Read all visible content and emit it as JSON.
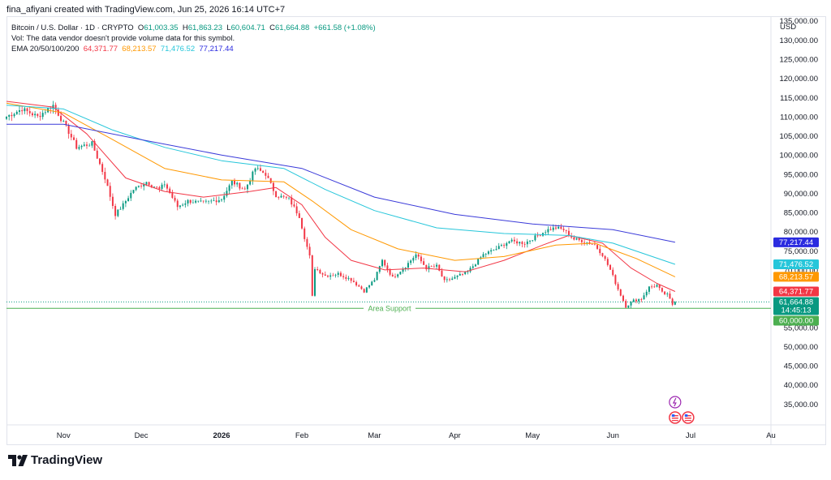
{
  "header": {
    "author_line": "fina_afiyani created with TradingView.com, Jun 25, 2026 16:14 UTC+7"
  },
  "legend": {
    "symbol": "Bitcoin / U.S. Dollar · 1D · CRYPTO",
    "o_label": "O",
    "o_value": "61,003.35",
    "h_label": "H",
    "h_value": "61,863.23",
    "l_label": "L",
    "l_value": "60,604.71",
    "c_label": "C",
    "c_value": "61,664.88",
    "change": "+661.58 (+1.08%)",
    "vol_text": "Vol: The data vendor doesn't provide volume data for this symbol.",
    "ema_label": "EMA 20/50/100/200",
    "ema20": "64,371.77",
    "ema50": "68,213.57",
    "ema100": "71,476.52",
    "ema200": "77,217.44"
  },
  "footer": {
    "brand": "TradingView"
  },
  "chart_data": {
    "type": "line",
    "currency_label": "USD",
    "ylim": [
      30000,
      136000
    ],
    "y_ticks": [
      35000,
      40000,
      45000,
      50000,
      55000,
      60000,
      65000,
      70000,
      75000,
      80000,
      85000,
      90000,
      95000,
      100000,
      105000,
      110000,
      115000,
      120000,
      125000,
      130000,
      135000
    ],
    "y_tick_labels": [
      "35,000.00",
      "40,000.00",
      "45,000.00",
      "50,000.00",
      "55,000.00",
      "60,000.00",
      "65,000.00",
      "70,000.00",
      "75,000.00",
      "80,000.00",
      "85,000.00",
      "90,000.00",
      "95,000.00",
      "100,000.00",
      "105,000.00",
      "110,000.00",
      "115,000.00",
      "120,000.00",
      "125,000.00",
      "130,000.00",
      "135,000.00"
    ],
    "x_ticks": [
      {
        "label": "Nov",
        "date": "2025-11-01",
        "bold": false
      },
      {
        "label": "Dec",
        "date": "2025-12-01",
        "bold": false
      },
      {
        "label": "2026",
        "date": "2026-01-01",
        "bold": true
      },
      {
        "label": "Feb",
        "date": "2026-02-01",
        "bold": false
      },
      {
        "label": "Mar",
        "date": "2026-03-01",
        "bold": false
      },
      {
        "label": "Apr",
        "date": "2026-04-01",
        "bold": false
      },
      {
        "label": "May",
        "date": "2026-05-01",
        "bold": false
      },
      {
        "label": "Jun",
        "date": "2026-06-01",
        "bold": false
      },
      {
        "label": "Jul",
        "date": "2026-07-01",
        "bold": false
      },
      {
        "label": "Au",
        "date": "2026-08-01",
        "bold": false
      }
    ],
    "x_range": [
      "2025-10-10",
      "2026-08-01"
    ],
    "price_anchors": [
      {
        "date": "2025-10-10",
        "close": 110000
      },
      {
        "date": "2025-10-16",
        "close": 112000
      },
      {
        "date": "2025-10-22",
        "close": 110000
      },
      {
        "date": "2025-10-28",
        "close": 113000
      },
      {
        "date": "2025-11-03",
        "close": 106000
      },
      {
        "date": "2025-11-06",
        "close": 102000
      },
      {
        "date": "2025-11-12",
        "close": 103000
      },
      {
        "date": "2025-11-17",
        "close": 94000
      },
      {
        "date": "2025-11-21",
        "close": 84500
      },
      {
        "date": "2025-11-24",
        "close": 87000
      },
      {
        "date": "2025-11-28",
        "close": 91000
      },
      {
        "date": "2025-12-03",
        "close": 93000
      },
      {
        "date": "2025-12-08",
        "close": 91000
      },
      {
        "date": "2025-12-10",
        "close": 92500
      },
      {
        "date": "2025-12-15",
        "close": 86500
      },
      {
        "date": "2025-12-19",
        "close": 88000
      },
      {
        "date": "2025-12-25",
        "close": 87500
      },
      {
        "date": "2026-01-01",
        "close": 88500
      },
      {
        "date": "2026-01-05",
        "close": 93000
      },
      {
        "date": "2026-01-10",
        "close": 91000
      },
      {
        "date": "2026-01-14",
        "close": 96500
      },
      {
        "date": "2026-01-18",
        "close": 95000
      },
      {
        "date": "2026-01-22",
        "close": 89500
      },
      {
        "date": "2026-01-27",
        "close": 88500
      },
      {
        "date": "2026-01-31",
        "close": 84000
      },
      {
        "date": "2026-02-02",
        "close": 78500
      },
      {
        "date": "2026-02-04",
        "close": 73500
      },
      {
        "date": "2026-02-05",
        "close": 63000
      },
      {
        "date": "2026-02-06",
        "close": 70500
      },
      {
        "date": "2026-02-10",
        "close": 68500
      },
      {
        "date": "2026-02-15",
        "close": 69000
      },
      {
        "date": "2026-02-20",
        "close": 67500
      },
      {
        "date": "2026-02-25",
        "close": 64500
      },
      {
        "date": "2026-03-01",
        "close": 67500
      },
      {
        "date": "2026-03-04",
        "close": 72500
      },
      {
        "date": "2026-03-08",
        "close": 68000
      },
      {
        "date": "2026-03-13",
        "close": 71000
      },
      {
        "date": "2026-03-17",
        "close": 74000
      },
      {
        "date": "2026-03-21",
        "close": 70500
      },
      {
        "date": "2026-03-25",
        "close": 71000
      },
      {
        "date": "2026-03-28",
        "close": 67000
      },
      {
        "date": "2026-04-01",
        "close": 68000
      },
      {
        "date": "2026-04-06",
        "close": 69500
      },
      {
        "date": "2026-04-12",
        "close": 74000
      },
      {
        "date": "2026-04-17",
        "close": 75500
      },
      {
        "date": "2026-04-22",
        "close": 77500
      },
      {
        "date": "2026-04-28",
        "close": 77000
      },
      {
        "date": "2026-05-03",
        "close": 79000
      },
      {
        "date": "2026-05-07",
        "close": 80500
      },
      {
        "date": "2026-05-10",
        "close": 81000
      },
      {
        "date": "2026-05-13",
        "close": 80500
      },
      {
        "date": "2026-05-17",
        "close": 78000
      },
      {
        "date": "2026-05-21",
        "close": 77500
      },
      {
        "date": "2026-05-25",
        "close": 76500
      },
      {
        "date": "2026-05-28",
        "close": 74000
      },
      {
        "date": "2026-05-31",
        "close": 70000
      },
      {
        "date": "2026-06-03",
        "close": 65000
      },
      {
        "date": "2026-06-06",
        "close": 60500
      },
      {
        "date": "2026-06-09",
        "close": 62000
      },
      {
        "date": "2026-06-12",
        "close": 62500
      },
      {
        "date": "2026-06-15",
        "close": 65500
      },
      {
        "date": "2026-06-18",
        "close": 66000
      },
      {
        "date": "2026-06-20",
        "close": 64000
      },
      {
        "date": "2026-06-22",
        "close": 63500
      },
      {
        "date": "2026-06-24",
        "close": 61000
      },
      {
        "date": "2026-06-25",
        "close": 61665
      }
    ],
    "ema_series": [
      {
        "name": "EMA 20",
        "color": "#f23645",
        "points": [
          [
            "2025-10-10",
            114000
          ],
          [
            "2025-10-28",
            112500
          ],
          [
            "2025-11-10",
            105500
          ],
          [
            "2025-11-25",
            94000
          ],
          [
            "2025-12-10",
            90500
          ],
          [
            "2025-12-25",
            89000
          ],
          [
            "2026-01-12",
            90500
          ],
          [
            "2026-01-22",
            91500
          ],
          [
            "2026-02-01",
            87000
          ],
          [
            "2026-02-10",
            78500
          ],
          [
            "2026-02-20",
            72500
          ],
          [
            "2026-03-05",
            70000
          ],
          [
            "2026-03-20",
            70500
          ],
          [
            "2026-04-05",
            69500
          ],
          [
            "2026-04-20",
            72500
          ],
          [
            "2026-05-05",
            76500
          ],
          [
            "2026-05-15",
            79000
          ],
          [
            "2026-05-28",
            77000
          ],
          [
            "2026-06-08",
            70500
          ],
          [
            "2026-06-18",
            66500
          ],
          [
            "2026-06-25",
            64372
          ]
        ]
      },
      {
        "name": "EMA 50",
        "color": "#ff9800",
        "points": [
          [
            "2025-10-10",
            113500
          ],
          [
            "2025-11-01",
            111000
          ],
          [
            "2025-11-20",
            104000
          ],
          [
            "2025-12-10",
            96500
          ],
          [
            "2026-01-01",
            93500
          ],
          [
            "2026-01-25",
            93000
          ],
          [
            "2026-02-05",
            88000
          ],
          [
            "2026-02-20",
            80500
          ],
          [
            "2026-03-10",
            75500
          ],
          [
            "2026-04-01",
            72500
          ],
          [
            "2026-04-20",
            73500
          ],
          [
            "2026-05-10",
            76500
          ],
          [
            "2026-05-25",
            77000
          ],
          [
            "2026-06-10",
            73000
          ],
          [
            "2026-06-25",
            68214
          ]
        ]
      },
      {
        "name": "EMA 100",
        "color": "#26c6da",
        "points": [
          [
            "2025-10-10",
            113000
          ],
          [
            "2025-11-01",
            112000
          ],
          [
            "2025-11-20",
            106500
          ],
          [
            "2025-12-10",
            102000
          ],
          [
            "2026-01-01",
            98500
          ],
          [
            "2026-01-25",
            96500
          ],
          [
            "2026-02-10",
            91000
          ],
          [
            "2026-03-01",
            85500
          ],
          [
            "2026-03-25",
            81000
          ],
          [
            "2026-04-20",
            79500
          ],
          [
            "2026-05-15",
            79000
          ],
          [
            "2026-06-01",
            77000
          ],
          [
            "2026-06-25",
            71477
          ]
        ]
      },
      {
        "name": "EMA 200",
        "color": "#3a3ad9",
        "points": [
          [
            "2025-10-10",
            108000
          ],
          [
            "2025-11-01",
            108000
          ],
          [
            "2025-12-01",
            104000
          ],
          [
            "2026-01-01",
            100000
          ],
          [
            "2026-02-01",
            96500
          ],
          [
            "2026-03-01",
            89000
          ],
          [
            "2026-04-01",
            84500
          ],
          [
            "2026-05-01",
            82000
          ],
          [
            "2026-06-01",
            80500
          ],
          [
            "2026-06-25",
            77217
          ]
        ]
      }
    ],
    "support_line": {
      "value": 60000,
      "label": "Area Support",
      "color": "#4caf50"
    },
    "price_labels": [
      {
        "text": "77,217.44",
        "value": 77217.44,
        "color": "#2b2be0"
      },
      {
        "text": "71,476.52",
        "value": 71476.52,
        "color": "#26c6da"
      },
      {
        "text": "68,213.57",
        "value": 68213.57,
        "color": "#ff9800"
      },
      {
        "text": "64,371.77",
        "value": 64371.77,
        "color": "#f23645"
      },
      {
        "text": "61,664.88",
        "value": 61664.88,
        "color": "#089981",
        "sub": "14:45:13"
      },
      {
        "text": "60,000.00",
        "value": 60000,
        "color": "#4caf50"
      }
    ],
    "candle_colors": {
      "up": "#089981",
      "down": "#f23645"
    },
    "last_price": 61664.88
  }
}
